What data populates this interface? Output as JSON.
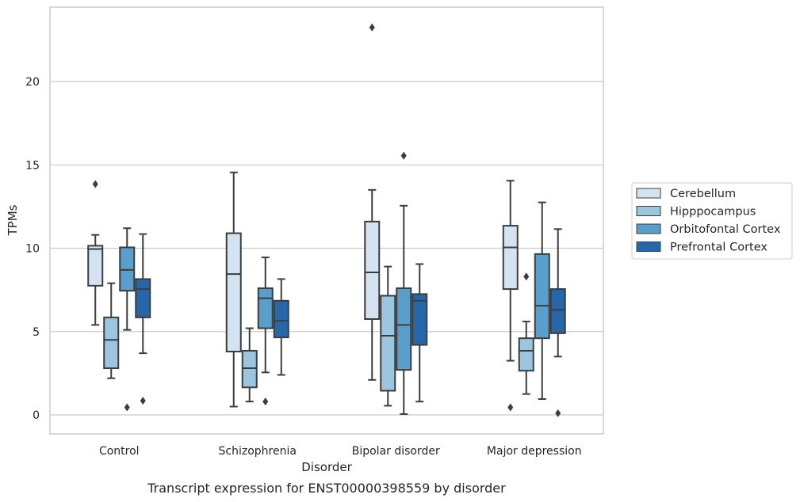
{
  "caption": "Transcript expression for ENST00000398559 by disorder",
  "chart_data": {
    "type": "box",
    "title": "",
    "xlabel": "Disorder",
    "ylabel": "TPMs",
    "ylim": [
      -1.1,
      24.5
    ],
    "yticks": [
      0,
      5,
      10,
      15,
      20
    ],
    "grid": "horizontal",
    "legend_position": "right",
    "categories": [
      "Control",
      "Schizophrenia",
      "Bipolar disorder",
      "Major depression"
    ],
    "series": [
      {
        "name": "Cerebellum",
        "color": "#d4e3f2",
        "boxes": [
          {
            "whisker_low": 5.4,
            "q1": 7.75,
            "median": 9.95,
            "q3": 10.15,
            "whisker_high": 10.8,
            "outliers": [
              13.85
            ]
          },
          {
            "whisker_low": 0.5,
            "q1": 3.8,
            "median": 8.45,
            "q3": 10.9,
            "whisker_high": 14.55,
            "outliers": []
          },
          {
            "whisker_low": 2.1,
            "q1": 5.75,
            "median": 8.55,
            "q3": 11.6,
            "whisker_high": 13.5,
            "outliers": [
              23.25
            ]
          },
          {
            "whisker_low": 3.25,
            "q1": 7.55,
            "median": 10.05,
            "q3": 11.35,
            "whisker_high": 14.05,
            "outliers": [
              0.45
            ]
          }
        ]
      },
      {
        "name": "Hipppocampus",
        "color": "#9cc5df",
        "boxes": [
          {
            "whisker_low": 2.2,
            "q1": 2.8,
            "median": 4.5,
            "q3": 5.85,
            "whisker_high": 7.9,
            "outliers": []
          },
          {
            "whisker_low": 0.8,
            "q1": 1.65,
            "median": 2.8,
            "q3": 3.85,
            "whisker_high": 5.2,
            "outliers": []
          },
          {
            "whisker_low": 0.55,
            "q1": 1.45,
            "median": 4.75,
            "q3": 7.15,
            "whisker_high": 8.9,
            "outliers": []
          },
          {
            "whisker_low": 1.25,
            "q1": 2.65,
            "median": 3.85,
            "q3": 4.6,
            "whisker_high": 5.6,
            "outliers": [
              8.3
            ]
          }
        ]
      },
      {
        "name": "Orbitofontal Cortex",
        "color": "#5a9ecb",
        "boxes": [
          {
            "whisker_low": 5.1,
            "q1": 7.45,
            "median": 8.7,
            "q3": 10.05,
            "whisker_high": 11.2,
            "outliers": [
              0.45
            ]
          },
          {
            "whisker_low": 2.55,
            "q1": 5.2,
            "median": 7.0,
            "q3": 7.6,
            "whisker_high": 9.45,
            "outliers": [
              0.8
            ]
          },
          {
            "whisker_low": 0.05,
            "q1": 2.7,
            "median": 5.4,
            "q3": 7.6,
            "whisker_high": 12.55,
            "outliers": [
              15.55
            ]
          },
          {
            "whisker_low": 0.95,
            "q1": 4.6,
            "median": 6.55,
            "q3": 9.65,
            "whisker_high": 12.75,
            "outliers": []
          }
        ]
      },
      {
        "name": "Prefrontal Cortex",
        "color": "#2866aa",
        "boxes": [
          {
            "whisker_low": 3.7,
            "q1": 5.85,
            "median": 7.55,
            "q3": 8.15,
            "whisker_high": 10.85,
            "outliers": [
              0.85
            ]
          },
          {
            "whisker_low": 2.4,
            "q1": 4.65,
            "median": 5.65,
            "q3": 6.85,
            "whisker_high": 8.15,
            "outliers": []
          },
          {
            "whisker_low": 0.8,
            "q1": 4.2,
            "median": 6.85,
            "q3": 7.25,
            "whisker_high": 9.05,
            "outliers": []
          },
          {
            "whisker_low": 3.5,
            "q1": 4.9,
            "median": 6.3,
            "q3": 7.55,
            "whisker_high": 11.15,
            "outliers": [
              0.1
            ]
          }
        ]
      }
    ]
  }
}
